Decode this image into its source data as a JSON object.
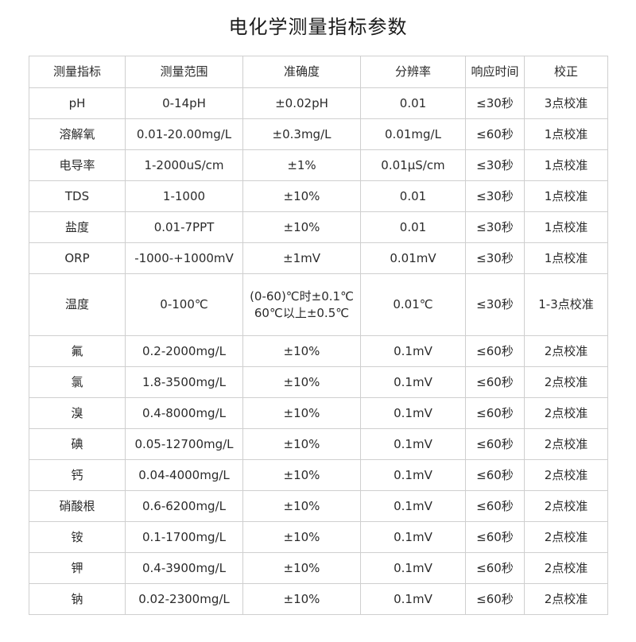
{
  "title": "电化学测量指标参数",
  "columns": [
    "测量指标",
    "测量范围",
    "准确度",
    "分辨率",
    "响应时间",
    "校正"
  ],
  "rows": [
    [
      "pH",
      "0-14pH",
      "±0.02pH",
      "0.01",
      "≤30秒",
      "3点校准"
    ],
    [
      "溶解氧",
      "0.01-20.00mg/L",
      "±0.3mg/L",
      "0.01mg/L",
      "≤60秒",
      "1点校准"
    ],
    [
      "电导率",
      "1-2000uS/cm",
      "±1%",
      "0.01μS/cm",
      "≤30秒",
      "1点校准"
    ],
    [
      "TDS",
      "1-1000",
      "±10%",
      "0.01",
      "≤30秒",
      "1点校准"
    ],
    [
      "盐度",
      "0.01-7PPT",
      "±10%",
      "0.01",
      "≤30秒",
      "1点校准"
    ],
    [
      "ORP",
      "-1000-+1000mV",
      "±1mV",
      "0.01mV",
      "≤30秒",
      "1点校准"
    ],
    [
      "温度",
      "0-100℃",
      "(0-60)℃时±0.1℃\n60℃以上±0.5℃",
      "0.01℃",
      "≤30秒",
      "1-3点校准"
    ],
    [
      "氟",
      "0.2-2000mg/L",
      "±10%",
      "0.1mV",
      "≤60秒",
      "2点校准"
    ],
    [
      "氯",
      "1.8-3500mg/L",
      "±10%",
      "0.1mV",
      "≤60秒",
      "2点校准"
    ],
    [
      "溴",
      "0.4-8000mg/L",
      "±10%",
      "0.1mV",
      "≤60秒",
      "2点校准"
    ],
    [
      "碘",
      "0.05-12700mg/L",
      "±10%",
      "0.1mV",
      "≤60秒",
      "2点校准"
    ],
    [
      "钙",
      "0.04-4000mg/L",
      "±10%",
      "0.1mV",
      "≤60秒",
      "2点校准"
    ],
    [
      "硝酸根",
      "0.6-6200mg/L",
      "±10%",
      "0.1mV",
      "≤60秒",
      "2点校准"
    ],
    [
      "铵",
      "0.1-1700mg/L",
      "±10%",
      "0.1mV",
      "≤60秒",
      "2点校准"
    ],
    [
      "钾",
      "0.4-3900mg/L",
      "±10%",
      "0.1mV",
      "≤60秒",
      "2点校准"
    ],
    [
      "钠",
      "0.02-2300mg/L",
      "±10%",
      "0.1mV",
      "≤60秒",
      "2点校准"
    ]
  ]
}
